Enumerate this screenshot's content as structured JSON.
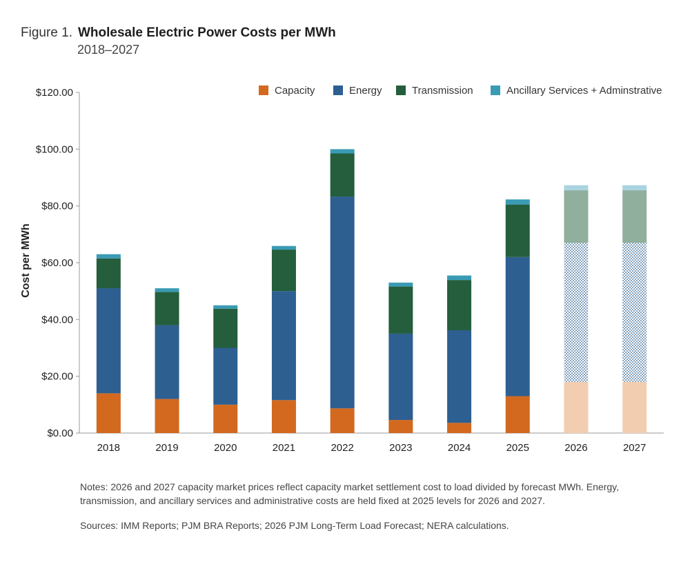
{
  "figure": {
    "number": "Figure 1.",
    "title": "Wholesale Electric Power Costs per MWh",
    "subtitle": "2018–2027"
  },
  "notes": "Notes: 2026 and 2027 capacity market prices reflect capacity market settlement cost to load divided by forecast MWh. Energy, transmission, and ancillary services and administrative costs are held fixed at 2025 levels for 2026 and 2027.",
  "sources": "Sources: IMM Reports; PJM BRA Reports; 2026 PJM Long-Term Load Forecast; NERA calculations.",
  "chart_data": {
    "type": "bar",
    "stacked": true,
    "title": "Wholesale Electric Power Costs per MWh",
    "subtitle": "2018–2027",
    "xlabel": "",
    "ylabel": "Cost per MWh",
    "ylim": [
      0,
      120
    ],
    "yticks": [
      0,
      20,
      40,
      60,
      80,
      100,
      120
    ],
    "ytick_labels": [
      "$0.00",
      "$20.00",
      "$40.00",
      "$60.00",
      "$80.00",
      "$100.00",
      "$120.00"
    ],
    "grid": false,
    "legend_position": "top-right",
    "categories": [
      "2018",
      "2019",
      "2020",
      "2021",
      "2022",
      "2023",
      "2024",
      "2025",
      "2026",
      "2027"
    ],
    "forecast_categories": [
      "2026",
      "2027"
    ],
    "series": [
      {
        "name": "Capacity",
        "color": "#d2691e",
        "forecast_color": "#f2cdb0",
        "values": [
          14.0,
          12.0,
          10.0,
          11.6,
          8.7,
          4.6,
          3.6,
          13.0,
          18.0,
          18.0
        ]
      },
      {
        "name": "Energy",
        "color": "#2d5f91",
        "forecast_color": "#8fa9c9",
        "values": [
          37.0,
          26.0,
          20.0,
          38.4,
          74.6,
          30.4,
          32.6,
          49.0,
          49.0,
          49.0
        ]
      },
      {
        "name": "Transmission",
        "color": "#245e3c",
        "forecast_color": "#91af9d",
        "values": [
          10.5,
          11.7,
          13.8,
          14.6,
          15.2,
          16.6,
          17.7,
          18.5,
          18.5,
          18.5
        ]
      },
      {
        "name": "Ancillary Services + Adminstrative",
        "color": "#3a9bb5",
        "forecast_color": "#a9d3e0",
        "values": [
          1.5,
          1.3,
          1.2,
          1.3,
          1.5,
          1.4,
          1.6,
          1.8,
          1.8,
          1.8
        ]
      }
    ]
  }
}
